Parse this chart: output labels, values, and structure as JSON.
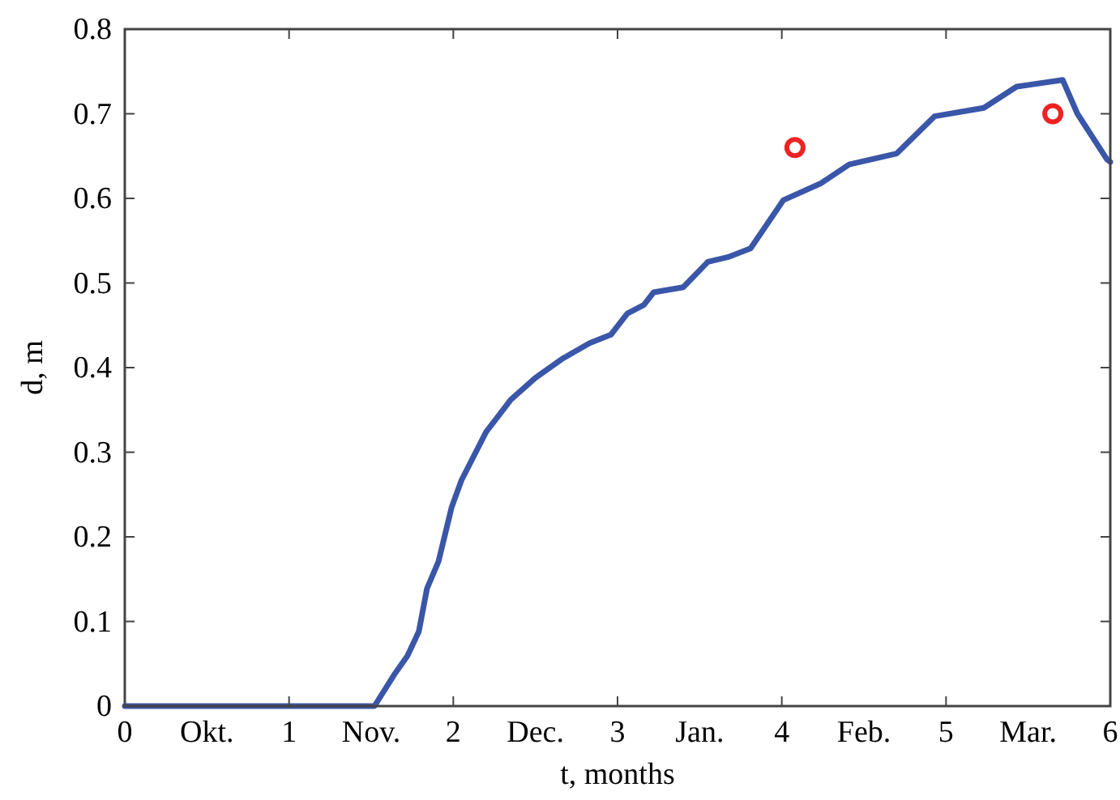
{
  "chart_data": {
    "type": "line",
    "xlabel": "t, months",
    "ylabel": "d, m",
    "xlim": [
      0,
      6
    ],
    "ylim": [
      0,
      0.8
    ],
    "xticks": [
      0,
      {
        "value": 0.5,
        "label": "Okt."
      },
      1,
      {
        "value": 1.5,
        "label": "Nov."
      },
      2,
      {
        "value": 2.5,
        "label": "Dec."
      },
      3,
      {
        "value": 3.5,
        "label": "Jan."
      },
      4,
      {
        "value": 4.5,
        "label": "Feb."
      },
      5,
      {
        "value": 5.5,
        "label": "Mar."
      },
      6
    ],
    "yticks": [
      0,
      0.1,
      0.2,
      0.3,
      0.4,
      0.5,
      0.6,
      0.7,
      0.8
    ],
    "grid": false,
    "series": [
      {
        "color": "#3a56a8",
        "marker": "none",
        "x": [
          0,
          1.52,
          1.64,
          1.72,
          1.79,
          1.84,
          1.91,
          1.99,
          2.05,
          2.2,
          2.35,
          2.5,
          2.66,
          2.83,
          2.96,
          3.06,
          3.16,
          3.22,
          3.4,
          3.55,
          3.68,
          3.81,
          4.01,
          4.24,
          4.41,
          4.7,
          4.93,
          5.23,
          5.43,
          5.71,
          5.8,
          5.98,
          6
        ],
        "values": [
          0,
          0,
          0.037,
          0.059,
          0.088,
          0.139,
          0.171,
          0.235,
          0.267,
          0.324,
          0.362,
          0.388,
          0.41,
          0.429,
          0.439,
          0.464,
          0.474,
          0.489,
          0.495,
          0.525,
          0.531,
          0.541,
          0.598,
          0.618,
          0.64,
          0.653,
          0.697,
          0.707,
          0.732,
          0.74,
          0.7,
          0.646,
          0.643
        ]
      },
      {
        "type": "scatter",
        "color": "#ee2222",
        "marker": "circle",
        "x": [
          4.08,
          5.65
        ],
        "values": [
          0.66,
          0.7
        ]
      }
    ]
  }
}
